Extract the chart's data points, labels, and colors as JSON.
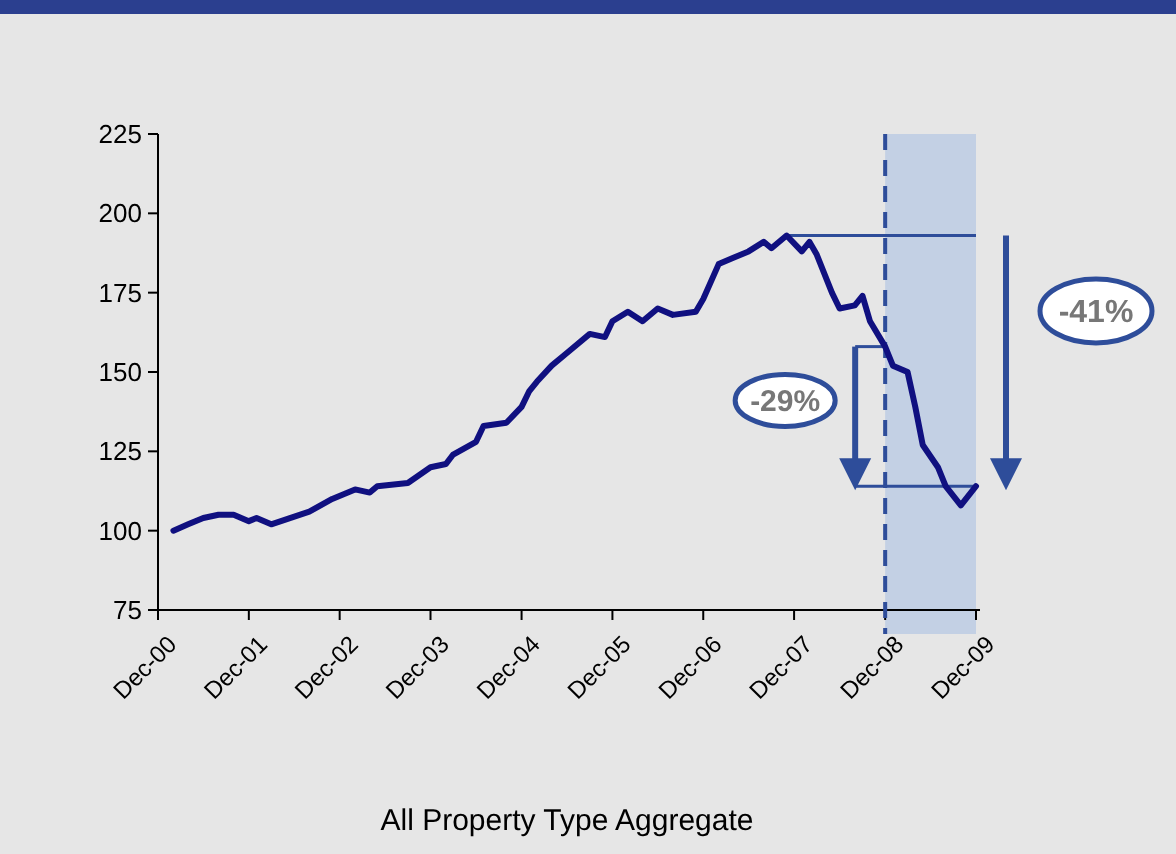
{
  "chart_data": {
    "type": "line",
    "xlabel": "All Property Type Aggregate",
    "x": [
      "2001-02",
      "2001-04",
      "2001-06",
      "2001-08",
      "2001-10",
      "2001-12",
      "2002-01",
      "2002-03",
      "2002-08",
      "2002-11",
      "2003-02",
      "2003-04",
      "2003-05",
      "2003-09",
      "2003-12",
      "2004-02",
      "2004-03",
      "2004-06",
      "2004-07",
      "2004-10",
      "2004-12",
      "2005-01",
      "2005-02",
      "2005-04",
      "2005-06",
      "2005-09",
      "2005-11",
      "2005-12",
      "2006-02",
      "2006-04",
      "2006-06",
      "2006-08",
      "2006-11",
      "2006-12",
      "2007-02",
      "2007-04",
      "2007-06",
      "2007-08",
      "2007-09",
      "2007-11",
      "2008-01",
      "2008-02",
      "2008-03",
      "2008-05",
      "2008-06",
      "2008-08",
      "2008-09",
      "2008-10",
      "2008-12",
      "2009-01",
      "2009-03",
      "2009-04",
      "2009-05",
      "2009-07",
      "2009-08",
      "2009-10",
      "2009-12"
    ],
    "series": [
      {
        "color": "#101080",
        "values": [
          100,
          102,
          104,
          105,
          105,
          103,
          104,
          102,
          106,
          110,
          113,
          112,
          114,
          115,
          120,
          121,
          124,
          128,
          133,
          134,
          139,
          144,
          147,
          152,
          156,
          162,
          161,
          166,
          169,
          166,
          170,
          168,
          169,
          173,
          184,
          186,
          188,
          191,
          189,
          193,
          188,
          191,
          187,
          175,
          170,
          171,
          174,
          166,
          158,
          152,
          150,
          139,
          127,
          120,
          114,
          108,
          114
        ]
      }
    ],
    "xlim": [
      "2000-12",
      "2009-12"
    ],
    "xticks": [
      {
        "value": "2000-12",
        "label": "Dec-00"
      },
      {
        "value": "2001-12",
        "label": "Dec-01"
      },
      {
        "value": "2002-12",
        "label": "Dec-02"
      },
      {
        "value": "2003-12",
        "label": "Dec-03"
      },
      {
        "value": "2004-12",
        "label": "Dec-04"
      },
      {
        "value": "2005-12",
        "label": "Dec-05"
      },
      {
        "value": "2006-12",
        "label": "Dec-06"
      },
      {
        "value": "2007-12",
        "label": "Dec-07"
      },
      {
        "value": "2008-12",
        "label": "Dec-08"
      },
      {
        "value": "2009-12",
        "label": "Dec-09"
      }
    ],
    "ylim": [
      75,
      225
    ],
    "yticks": [
      75,
      100,
      125,
      150,
      175,
      200,
      225
    ],
    "ref_lines": [
      {
        "axis": "x",
        "value": "2008-12",
        "color": "#2e4d9a",
        "line_style": "dashed"
      }
    ],
    "bands": [
      {
        "axis": "x",
        "from": "2008-12",
        "to": "2009-12",
        "color": "#bccbe3"
      }
    ],
    "annotations": [
      "-29%",
      "-41%"
    ],
    "grid": false,
    "marker": "none",
    "line_style": "solid"
  }
}
